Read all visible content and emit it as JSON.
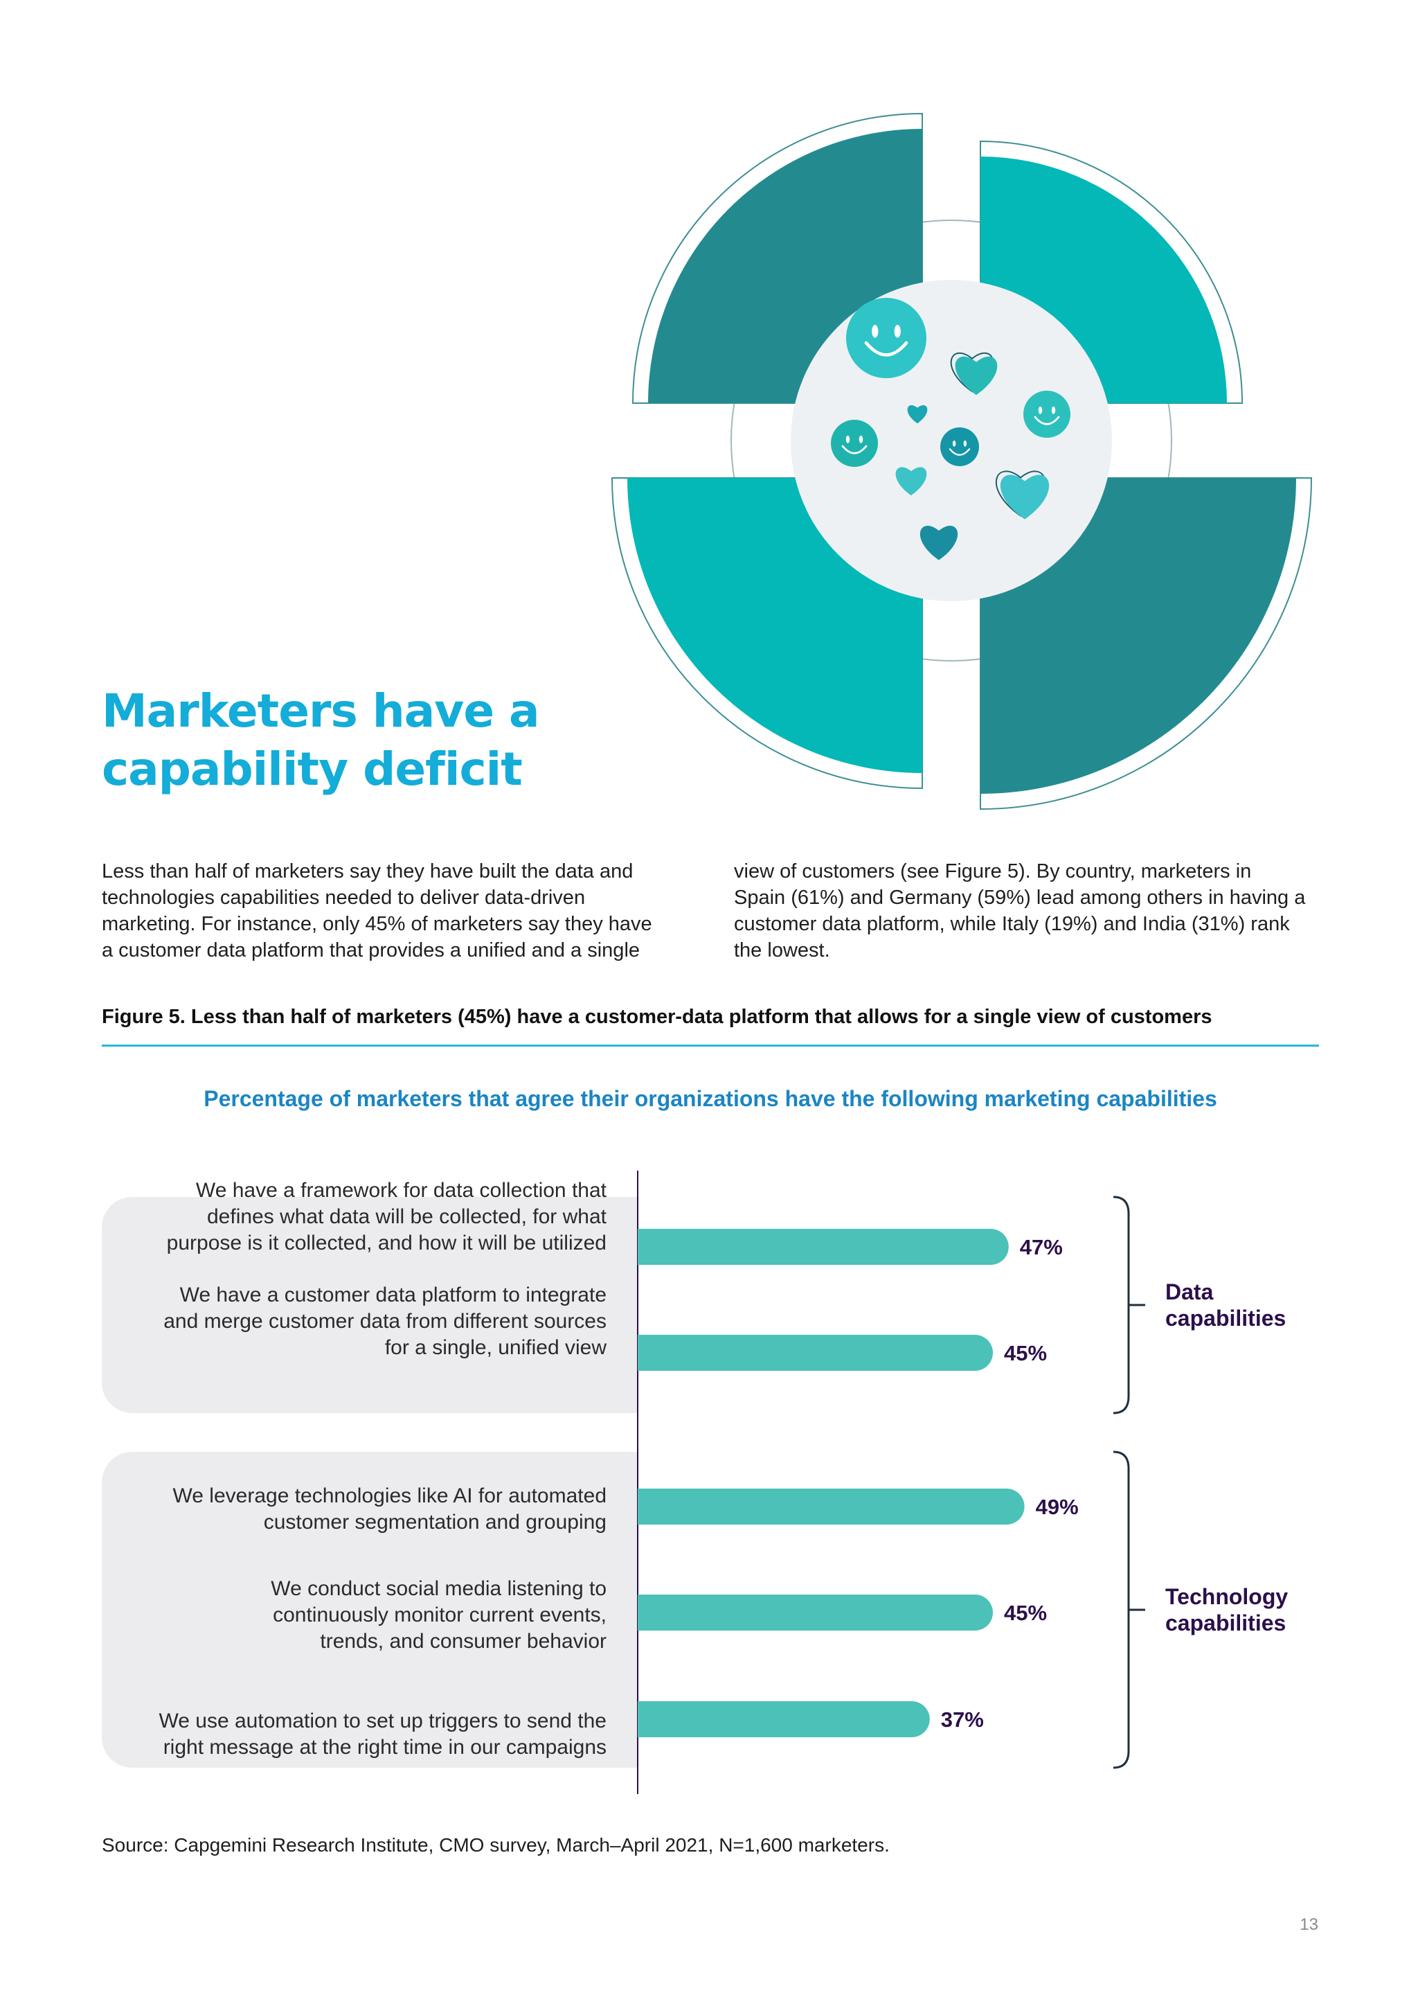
{
  "heading": [
    "Marketers have a",
    "capability deficit"
  ],
  "body": {
    "col1": [
      "Less than half of marketers say they have built the data and",
      "technologies capabilities needed to deliver data-driven",
      "marketing. For instance, only 45% of marketers say they have",
      "a customer data platform that provides a unified and a single"
    ],
    "col2": [
      "view of customers (see Figure 5). By country, marketers in",
      "Spain (61%) and Germany (59%) lead among others in having a",
      "customer data platform, while Italy (19%) and India (31%) rank",
      "the lowest."
    ]
  },
  "figure": {
    "title": "Figure 5. Less than half of marketers (45%) have a customer-data platform that allows for a single view of customers",
    "subtitle": "Percentage of marketers that agree their organizations have the following marketing capabilities"
  },
  "source": "Source: Capgemini Research Institute, CMO survey, March–April 2021, N=1,600 marketers.",
  "page_number": "13",
  "colors": {
    "bar": "#4cc1b8",
    "heading": "#14acd8",
    "group_label": "#2b0f4a",
    "band": "#ececef",
    "quadrant_dark": "#238b8f",
    "quadrant_light": "#03b8b7"
  },
  "hero": {
    "icons": [
      "smiley-icon",
      "heart-icon",
      "smiley-icon",
      "heart-icon",
      "smiley-icon",
      "smiley-icon",
      "heart-icon",
      "heart-icon",
      "heart-icon"
    ]
  },
  "chart_data": {
    "type": "bar",
    "orientation": "horizontal",
    "categories": [
      "We have a framework for data collection that defines what data will be collected, for what purpose is it collected, and how it will be utilized",
      "We have a customer data platform to integrate and merge customer data from different sources for a single, unified view",
      "We leverage technologies like AI for automated customer segmentation and grouping",
      "We conduct social media listening to continuously monitor current events, trends, and consumer behavior",
      "We use automation to set up triggers to send the right message at the right time in our campaigns"
    ],
    "category_lines": [
      [
        "We have a framework for data collection that",
        "defines what data will be collected, for what",
        "purpose is it collected, and how it will be utilized"
      ],
      [
        "We have a customer data platform to integrate",
        "and merge customer data from different sources",
        "for a single, unified view"
      ],
      [
        "We leverage technologies like AI for automated",
        "customer segmentation and grouping"
      ],
      [
        "We conduct social media listening to",
        "continuously monitor current events,",
        "trends, and consumer behavior"
      ],
      [
        "We use automation to set up triggers to send the",
        "right message at the right time in our campaigns"
      ]
    ],
    "values": [
      47,
      45,
      49,
      45,
      37
    ],
    "data_labels": [
      "47%",
      "45%",
      "49%",
      "45%",
      "37%"
    ],
    "groups": [
      {
        "lines": [
          "Data",
          "capabilities"
        ],
        "items": [
          0,
          1
        ]
      },
      {
        "lines": [
          "Technology",
          "capabilities"
        ],
        "items": [
          2,
          3,
          4
        ]
      }
    ],
    "xlim": [
      0,
      100
    ],
    "grid": false,
    "legend": "none"
  }
}
